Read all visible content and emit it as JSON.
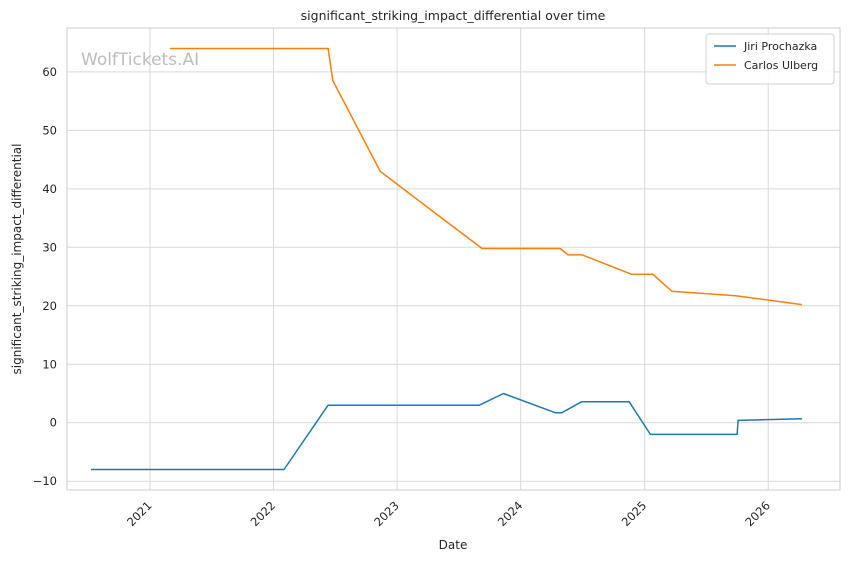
{
  "watermark": "WolfTickets.AI",
  "chart_data": {
    "type": "line",
    "title": "significant_striking_impact_differential over time",
    "xlabel": "Date",
    "ylabel": "significant_striking_impact_differential",
    "x_ticks": [
      "2021",
      "2022",
      "2023",
      "2024",
      "2025",
      "2026"
    ],
    "y_ticks": [
      -10,
      0,
      10,
      20,
      30,
      40,
      50,
      60
    ],
    "xlim": [
      "2020-05-01",
      "2026-08-01"
    ],
    "ylim": [
      -11.5,
      67.5
    ],
    "grid": true,
    "legend_position": "top-right",
    "series": [
      {
        "name": "Jiri Prochazka",
        "color": "#1f77b4",
        "points": [
          {
            "x": "2020-07-11",
            "y": -8
          },
          {
            "x": "2022-02-01",
            "y": -8
          },
          {
            "x": "2022-06-11",
            "y": 3
          },
          {
            "x": "2023-09-01",
            "y": 3
          },
          {
            "x": "2023-11-11",
            "y": 5
          },
          {
            "x": "2024-04-13",
            "y": 1.7
          },
          {
            "x": "2024-05-01",
            "y": 1.7
          },
          {
            "x": "2024-06-29",
            "y": 3.6
          },
          {
            "x": "2024-11-16",
            "y": 3.6
          },
          {
            "x": "2025-01-18",
            "y": -2
          },
          {
            "x": "2025-10-01",
            "y": -2
          },
          {
            "x": "2025-10-04",
            "y": 0.4
          },
          {
            "x": "2026-04-11",
            "y": 0.7
          }
        ]
      },
      {
        "name": "Carlos Ulberg",
        "color": "#ff7f0e",
        "points": [
          {
            "x": "2021-03-01",
            "y": 64
          },
          {
            "x": "2022-06-11",
            "y": 64
          },
          {
            "x": "2022-06-25",
            "y": 58.5
          },
          {
            "x": "2022-11-12",
            "y": 43
          },
          {
            "x": "2023-05-01",
            "y": 35.5
          },
          {
            "x": "2023-09-09",
            "y": 29.8
          },
          {
            "x": "2024-04-27",
            "y": 29.8
          },
          {
            "x": "2024-05-20",
            "y": 28.7
          },
          {
            "x": "2024-07-01",
            "y": 28.7
          },
          {
            "x": "2024-11-23",
            "y": 25.4
          },
          {
            "x": "2025-01-25",
            "y": 25.4
          },
          {
            "x": "2025-03-22",
            "y": 22.5
          },
          {
            "x": "2025-09-27",
            "y": 21.7
          },
          {
            "x": "2026-04-11",
            "y": 20.2
          }
        ]
      }
    ]
  }
}
